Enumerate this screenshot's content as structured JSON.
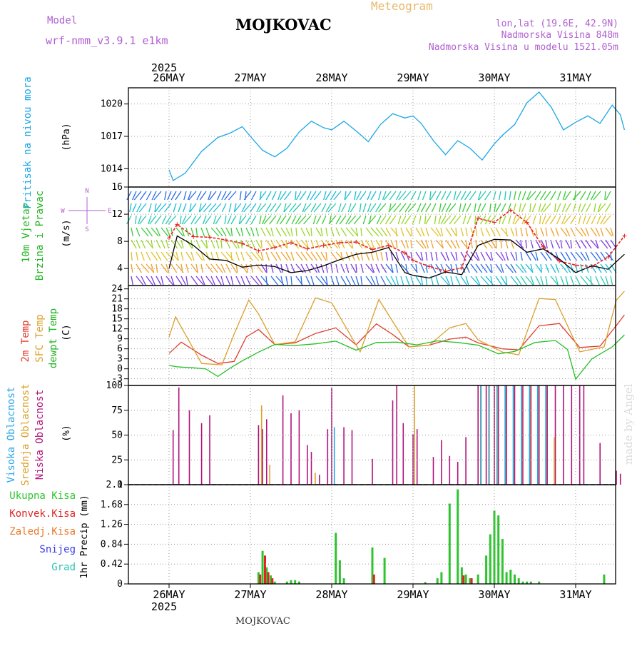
{
  "header": {
    "model_label": "Model",
    "model_name": "wrf-nmm_v3.9.1 e1km",
    "station": "MOJKOVAC",
    "product": "Meteogram",
    "lonlat": "lon,lat (19.6E, 42.9N)",
    "elevation": "Nadmorska Visina 848m",
    "model_elevation": "Nadmorska Visina u modelu 1521.05m",
    "year": "2025",
    "footer_station": "MOJKOVAC",
    "credit": "made by Angel"
  },
  "colors": {
    "pressure": "#1aa7e6",
    "wind_speed_max": "#e8241e",
    "wind_speed": "#000000",
    "temp_2m": "#e03a2a",
    "temp_sfc": "#dca02a",
    "temp_dewpt": "#22c022",
    "cloud_high": "#2aa6e6",
    "cloud_mid": "#dca02a",
    "cloud_low": "#b0147c",
    "precip_total": "#2ec42e",
    "precip_conv": "#e02424",
    "precip_frozen": "#e87a2a",
    "precip_snow": "#3a3ae6",
    "precip_graupel": "#28c4b4"
  },
  "chart_data": [
    {
      "type": "line",
      "panel": "pressure",
      "ylabel": [
        "Pritisak na nivou mora",
        "(hPa)"
      ],
      "yticks": [
        1014,
        1017,
        1020
      ],
      "ylim": [
        1012.3,
        1021.5
      ],
      "x_categories": [
        "26MAY",
        "27MAY",
        "28MAY",
        "29MAY",
        "30MAY",
        "31MAY"
      ],
      "grid": true,
      "series": [
        {
          "key": "pressure",
          "x": [
            0,
            0.05,
            0.2,
            0.4,
            0.6,
            0.75,
            0.9,
            1.0,
            1.15,
            1.3,
            1.45,
            1.6,
            1.75,
            1.9,
            2.0,
            2.15,
            2.3,
            2.45,
            2.6,
            2.75,
            2.9,
            3.0,
            3.1,
            3.25,
            3.4,
            3.55,
            3.7,
            3.85,
            4.0,
            4.1,
            4.25,
            4.4,
            4.55,
            4.7,
            4.85,
            5.0,
            5.15,
            5.3,
            5.45,
            5.55,
            5.6
          ],
          "values": [
            1013.9,
            1012.9,
            1013.6,
            1015.6,
            1016.9,
            1017.3,
            1017.9,
            1017.0,
            1015.7,
            1015.1,
            1015.9,
            1017.4,
            1018.4,
            1017.8,
            1017.6,
            1018.4,
            1017.5,
            1016.5,
            1018.1,
            1019.1,
            1018.7,
            1018.9,
            1018.2,
            1016.6,
            1015.3,
            1016.6,
            1015.9,
            1014.8,
            1016.3,
            1017.1,
            1018.1,
            1020.1,
            1021.1,
            1019.7,
            1017.6,
            1018.3,
            1018.9,
            1018.2,
            1019.9,
            1019.0,
            1017.6
          ]
        }
      ]
    },
    {
      "type": "line",
      "panel": "wind",
      "ylabel": [
        "10m Vjetar",
        "Brzina i Pravac",
        "(m/s)"
      ],
      "compass": [
        "N",
        "W",
        "E",
        "S"
      ],
      "yticks": [
        4,
        8,
        12,
        16
      ],
      "ylim": [
        1.5,
        16
      ],
      "grid": true,
      "series": [
        {
          "key": "wind_speed_max",
          "x": [
            0,
            0.1,
            0.3,
            0.5,
            0.7,
            0.9,
            1.1,
            1.3,
            1.5,
            1.7,
            1.9,
            2.1,
            2.3,
            2.5,
            2.7,
            2.9,
            3.0,
            3.2,
            3.4,
            3.6,
            3.8,
            4.0,
            4.2,
            4.4,
            4.6,
            4.8,
            5.0,
            5.2,
            5.4,
            5.6
          ],
          "values": [
            8.5,
            10.5,
            8.7,
            8.6,
            8.2,
            7.7,
            6.6,
            7.1,
            7.8,
            6.9,
            7.4,
            7.8,
            7.9,
            6.8,
            7.4,
            6.3,
            5.2,
            4.3,
            3.6,
            4.1,
            11.4,
            10.8,
            12.6,
            10.8,
            7.2,
            5.1,
            4.5,
            4.3,
            5.7,
            8.8
          ]
        },
        {
          "key": "wind_speed",
          "x": [
            0,
            0.1,
            0.3,
            0.5,
            0.7,
            0.9,
            1.1,
            1.3,
            1.5,
            1.7,
            1.9,
            2.1,
            2.3,
            2.5,
            2.7,
            2.9,
            3.0,
            3.2,
            3.4,
            3.6,
            3.8,
            4.0,
            4.2,
            4.4,
            4.6,
            4.8,
            5.0,
            5.2,
            5.4,
            5.6
          ],
          "values": [
            4.0,
            8.8,
            7.4,
            5.4,
            5.2,
            4.2,
            4.5,
            4.3,
            3.4,
            3.7,
            4.4,
            5.3,
            6.1,
            6.4,
            7.1,
            3.4,
            3.0,
            2.6,
            3.5,
            3.1,
            7.4,
            8.3,
            8.2,
            6.4,
            6.9,
            5.4,
            3.4,
            4.4,
            3.9,
            6.1
          ]
        }
      ]
    },
    {
      "type": "line",
      "panel": "temperature",
      "ylabel": [
        "2m Temp",
        "SFC Temp",
        "dewpt Temp",
        "(C)"
      ],
      "yticks": [
        -3,
        0,
        3,
        6,
        9,
        12,
        15,
        18,
        21,
        24
      ],
      "ylim": [
        -5,
        25
      ],
      "grid": true,
      "series": [
        {
          "key": "temp_2m",
          "name": "2m Temp",
          "x": [
            0,
            0.15,
            0.4,
            0.6,
            0.8,
            0.95,
            1.1,
            1.3,
            1.55,
            1.8,
            2.05,
            2.3,
            2.55,
            2.75,
            2.95,
            3.2,
            3.45,
            3.65,
            3.8,
            4.1,
            4.3,
            4.55,
            4.8,
            5.05,
            5.3,
            5.5,
            5.6
          ],
          "values": [
            4.6,
            8.0,
            4.1,
            1.6,
            2.2,
            9.6,
            11.8,
            7.3,
            7.8,
            10.6,
            12.3,
            7.2,
            13.5,
            10.3,
            6.6,
            7.1,
            8.9,
            9.5,
            7.8,
            6.0,
            5.7,
            12.9,
            13.6,
            6.4,
            6.8,
            13.0,
            16.2
          ]
        },
        {
          "key": "temp_sfc",
          "name": "SFC Temp",
          "x": [
            0,
            0.08,
            0.4,
            0.65,
            0.8,
            0.98,
            1.1,
            1.3,
            1.55,
            1.8,
            2.0,
            2.35,
            2.58,
            2.75,
            2.95,
            3.2,
            3.45,
            3.65,
            3.8,
            4.1,
            4.3,
            4.55,
            4.75,
            5.05,
            5.35,
            5.5,
            5.6
          ],
          "values": [
            9.6,
            15.6,
            1.6,
            1.2,
            10.4,
            20.6,
            16.5,
            7.3,
            8.1,
            21.3,
            19.8,
            5.1,
            20.8,
            14.2,
            6.6,
            7.1,
            12.3,
            13.6,
            8.7,
            5.0,
            4.2,
            21.1,
            20.8,
            5.1,
            6.6,
            20.6,
            23.3
          ]
        },
        {
          "key": "temp_dewpt",
          "name": "dewpt Temp",
          "x": [
            0,
            0.1,
            0.3,
            0.45,
            0.6,
            0.75,
            0.9,
            1.1,
            1.3,
            1.55,
            1.8,
            2.05,
            2.3,
            2.55,
            2.8,
            3.05,
            3.3,
            3.55,
            3.8,
            4.05,
            4.25,
            4.5,
            4.75,
            4.9,
            5.0,
            5.2,
            5.45,
            5.6
          ],
          "values": [
            1.0,
            0.6,
            0.3,
            0.0,
            -2.3,
            0.2,
            2.4,
            5.0,
            7.3,
            7.0,
            7.5,
            8.3,
            5.6,
            7.9,
            8.0,
            7.2,
            8.4,
            7.9,
            7.1,
            4.5,
            5.2,
            7.9,
            8.5,
            5.8,
            -3.1,
            3.0,
            6.6,
            10.2
          ]
        }
      ]
    },
    {
      "type": "bar",
      "panel": "clouds",
      "ylabel": [
        "Visoka Oblacnost",
        "Srednja Oblacnost",
        "Niska Oblacnost",
        "(%)"
      ],
      "yticks": [
        0,
        25,
        50,
        75,
        100
      ],
      "ylim": [
        0,
        100
      ],
      "grid": true,
      "series": [
        {
          "key": "cloud_low",
          "name": "Niska Oblacnost",
          "x": [
            0.05,
            0.12,
            0.25,
            0.4,
            0.5,
            1.1,
            1.15,
            1.2,
            1.4,
            1.5,
            1.6,
            1.7,
            1.75,
            1.85,
            1.95,
            2.0,
            2.15,
            2.25,
            2.5,
            2.75,
            2.8,
            2.88,
            3.0,
            3.05,
            3.25,
            3.35,
            3.45,
            3.55,
            3.65,
            3.8,
            3.9,
            4.0,
            4.05,
            4.15,
            4.25,
            4.35,
            4.45,
            4.55,
            4.65,
            4.75,
            4.85,
            4.95,
            5.05,
            5.1,
            5.3,
            5.5,
            5.55
          ],
          "values": [
            55,
            98,
            75,
            62,
            70,
            60,
            56,
            66,
            90,
            72,
            75,
            40,
            33,
            10,
            56,
            98,
            58,
            55,
            26,
            85,
            100,
            62,
            51,
            56,
            28,
            45,
            29,
            23,
            48,
            100,
            100,
            100,
            100,
            100,
            100,
            100,
            100,
            100,
            100,
            100,
            100,
            100,
            100,
            100,
            42,
            14,
            11
          ]
        },
        {
          "key": "cloud_mid",
          "name": "Srednja Oblacnost",
          "x": [
            1.12,
            1.22,
            1.78,
            3.0,
            3.82,
            3.92,
            4.02,
            4.12,
            4.22,
            4.32,
            4.42,
            4.52,
            4.62,
            4.72
          ],
          "values": [
            80,
            20,
            12,
            100,
            100,
            100,
            100,
            100,
            100,
            100,
            100,
            100,
            100,
            48
          ]
        },
        {
          "key": "cloud_high",
          "name": "Visoka Oblacnost",
          "x": [
            2.05,
            3.85,
            3.95,
            4.05,
            4.15,
            4.25,
            4.35,
            4.45,
            4.55,
            4.65
          ],
          "values": [
            58,
            100,
            100,
            100,
            100,
            100,
            100,
            100,
            100,
            100
          ]
        }
      ]
    },
    {
      "type": "bar",
      "panel": "precipitation",
      "ylabel": [
        "1hr Precip (mm)"
      ],
      "legend": [
        "Ukupna Kisa",
        "Konvek.Kisa",
        "Zaledj.Kisa",
        "Snijeg",
        "Grad"
      ],
      "yticks": [
        0,
        0.42,
        0.84,
        1.26,
        1.68,
        2.1
      ],
      "ylim": [
        0,
        2.1
      ],
      "grid": true,
      "series": [
        {
          "key": "precip_total",
          "name": "Ukupna Kisa",
          "x": [
            1.1,
            1.15,
            1.2,
            1.25,
            1.3,
            1.45,
            1.5,
            1.55,
            1.6,
            2.05,
            2.1,
            2.15,
            2.5,
            2.65,
            3.15,
            3.3,
            3.35,
            3.45,
            3.55,
            3.6,
            3.65,
            3.7,
            3.8,
            3.9,
            3.95,
            4.0,
            4.05,
            4.1,
            4.15,
            4.2,
            4.25,
            4.3,
            4.35,
            4.4,
            4.45,
            4.55,
            5.35
          ],
          "values": [
            0.25,
            0.7,
            0.35,
            0.18,
            0.05,
            0.05,
            0.08,
            0.08,
            0.05,
            1.08,
            0.5,
            0.12,
            0.77,
            0.55,
            0.04,
            0.12,
            0.25,
            1.7,
            2.0,
            0.35,
            0.2,
            0.12,
            0.2,
            0.6,
            1.05,
            1.55,
            1.45,
            0.95,
            0.25,
            0.3,
            0.2,
            0.12,
            0.05,
            0.05,
            0.05,
            0.05,
            0.2
          ]
        },
        {
          "key": "precip_conv",
          "name": "Konvek.Kisa",
          "x": [
            1.12,
            1.18,
            1.22,
            1.27,
            2.52,
            3.62,
            3.72
          ],
          "values": [
            0.2,
            0.6,
            0.25,
            0.12,
            0.2,
            0.18,
            0.12
          ]
        }
      ]
    }
  ]
}
